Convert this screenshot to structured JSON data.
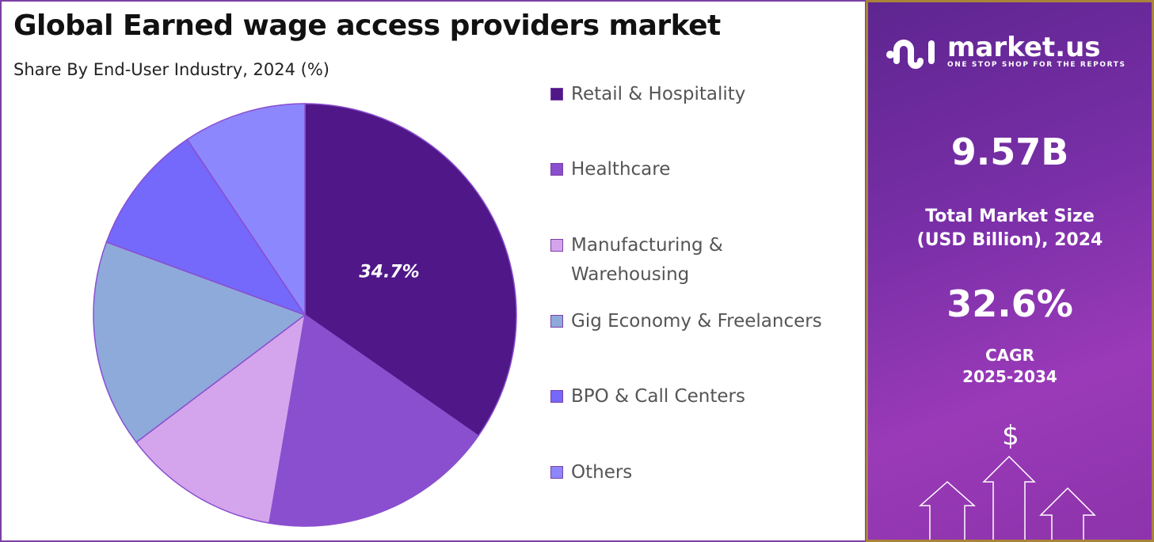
{
  "chart_data": {
    "type": "pie",
    "title": "Global Earned wage access providers market",
    "subtitle": "Share By End-User Industry, 2024 (%)",
    "legend_position": "right",
    "slices": [
      {
        "name": "Retail & Hospitality",
        "value": 34.7,
        "color": "#4f1787",
        "label": "34.7%"
      },
      {
        "name": "Healthcare",
        "value": 18.0,
        "color": "#8a4fcf"
      },
      {
        "name": "Manufacturing & Warehousing",
        "value": 12.0,
        "color": "#d4a5ec"
      },
      {
        "name": "Gig Economy & Freelancers",
        "value": 15.9,
        "color": "#8eaadb"
      },
      {
        "name": "BPO & Call Centers",
        "value": 10.0,
        "color": "#7469fb"
      },
      {
        "name": "Others",
        "value": 9.4,
        "color": "#8c87fd"
      }
    ]
  },
  "legend": {
    "items": [
      "Retail & Hospitality",
      "Healthcare",
      "Manufacturing &\nWarehousing",
      "Gig Economy & Freelancers",
      "BPO & Call Centers",
      "Others"
    ]
  },
  "sidebar": {
    "logo_text": "market.us",
    "logo_tagline": "ONE STOP SHOP FOR THE REPORTS",
    "market_size": "9.57B",
    "market_size_label_1": "Total Market Size",
    "market_size_label_2": "(USD Billion), 2024",
    "cagr": "32.6%",
    "cagr_label": "CAGR",
    "cagr_period": "2025-2034",
    "dollar_symbol": "$"
  }
}
